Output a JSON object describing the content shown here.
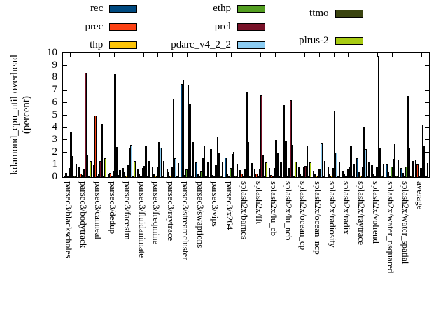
{
  "y_axis": {
    "label_line1": "kdamond_cpu_util overhead",
    "label_line2": "(percent)",
    "min": 0,
    "max": 10,
    "tick_step": 1,
    "tick_labels": [
      "0",
      "1",
      "2",
      "3",
      "4",
      "5",
      "6",
      "7",
      "8",
      "9",
      "10"
    ]
  },
  "legend": {
    "position": "top-center",
    "columns": 3,
    "column_chunks": [
      3,
      3,
      2
    ]
  },
  "chart_data": {
    "type": "bar",
    "title": "",
    "xlabel": "",
    "ylabel": "kdamond_cpu_util overhead (percent)",
    "ylim": [
      0,
      10
    ],
    "grid": false,
    "legend_position": "top-center",
    "categories": [
      "parsec3/blackscholes",
      "parsec3/bodytrack",
      "parsec3/canneal",
      "parsec3/dedup",
      "parsec3/facesim",
      "parsec3/fluidanimate",
      "parsec3/freqmine",
      "parsec3/raytrace",
      "parsec3/streamcluster",
      "parsec3/swaptions",
      "parsec3/vips",
      "parsec3/x264",
      "splash2x/barnes",
      "splash2x/fft",
      "splash2x/lu_cb",
      "splash2x/lu_ncb",
      "splash2x/ocean_cp",
      "splash2x/ocean_ncp",
      "splash2x/radiosity",
      "splash2x/radix",
      "splash2x/raytrace",
      "splash2x/volrend",
      "splash2x/water_nsquared",
      "splash2x/water_spatial",
      "average"
    ],
    "series": [
      {
        "name": "rec",
        "color": "#004a80",
        "values": [
          0.1,
          0.85,
          1.0,
          0.3,
          0.75,
          0.7,
          0.8,
          0.7,
          7.5,
          1.2,
          2.25,
          1.6,
          0.55,
          0.7,
          0.75,
          5.8,
          0.8,
          0.5,
          0.8,
          0.5,
          1.55,
          0.95,
          1.05,
          0.75,
          1.35
        ]
      },
      {
        "name": "prec",
        "color": "#fc4113",
        "values": [
          0.35,
          0.3,
          4.95,
          0.35,
          0.45,
          0.3,
          0.25,
          0.4,
          7.8,
          0.2,
          0.15,
          0.3,
          0.3,
          0.3,
          0.15,
          2.95,
          0.3,
          0.25,
          0.25,
          0.3,
          0.45,
          0.25,
          0.4,
          0.35,
          1.05
        ]
      },
      {
        "name": "thp",
        "color": "#fdc409",
        "values": [
          0.1,
          0.15,
          0.1,
          0.1,
          0.1,
          0.1,
          0.1,
          0.1,
          0.15,
          0.1,
          0.1,
          0.1,
          0.1,
          0.1,
          0.1,
          0.1,
          0.1,
          0.1,
          0.1,
          0.1,
          0.1,
          0.1,
          0.1,
          0.1,
          0.1
        ]
      },
      {
        "name": "ethp",
        "color": "#539e21",
        "values": [
          0.75,
          0.6,
          0.3,
          0.5,
          1.0,
          0.75,
          0.85,
          0.8,
          0.6,
          0.5,
          0.95,
          0.75,
          0.7,
          0.7,
          0.75,
          0.75,
          0.85,
          0.6,
          0.75,
          0.7,
          0.8,
          0.8,
          0.85,
          0.85,
          0.75
        ]
      },
      {
        "name": "prcl",
        "color": "#781228",
        "values": [
          3.7,
          8.4,
          1.3,
          8.3,
          2.3,
          0.9,
          2.8,
          6.3,
          7.4,
          1.5,
          3.3,
          1.85,
          6.9,
          6.6,
          3.0,
          6.2,
          0.9,
          0.7,
          5.3,
          0.8,
          4.0,
          9.75,
          1.45,
          6.55,
          4.2
        ]
      },
      {
        "name": "pdarc_v4_2_2",
        "color": "#8bccf2",
        "values": [
          1.7,
          1.75,
          4.3,
          2.45,
          2.6,
          2.5,
          2.4,
          1.55,
          5.9,
          2.5,
          2.0,
          2.05,
          2.8,
          1.8,
          2.0,
          2.6,
          2.55,
          2.75,
          2.0,
          2.5,
          2.25,
          2.3,
          2.65,
          2.4,
          2.5
        ]
      },
      {
        "name": "ttmo",
        "color": "#3a4410",
        "values": [
          0.1,
          0.1,
          0.1,
          0.15,
          0.1,
          0.1,
          0.1,
          0.1,
          0.1,
          0.1,
          0.1,
          0.1,
          0.1,
          0.1,
          0.1,
          0.1,
          0.1,
          0.1,
          0.1,
          0.1,
          0.1,
          0.1,
          0.1,
          0.1,
          0.1
        ]
      },
      {
        "name": "plrus-2",
        "color": "#a8cb13",
        "values": [
          1.1,
          1.3,
          1.55,
          0.55,
          1.3,
          1.3,
          1.3,
          1.15,
          2.8,
          1.2,
          1.2,
          1.05,
          1.15,
          1.2,
          1.2,
          1.25,
          1.2,
          1.3,
          1.2,
          1.1,
          1.2,
          1.1,
          1.35,
          1.3,
          1.15
        ]
      }
    ]
  }
}
